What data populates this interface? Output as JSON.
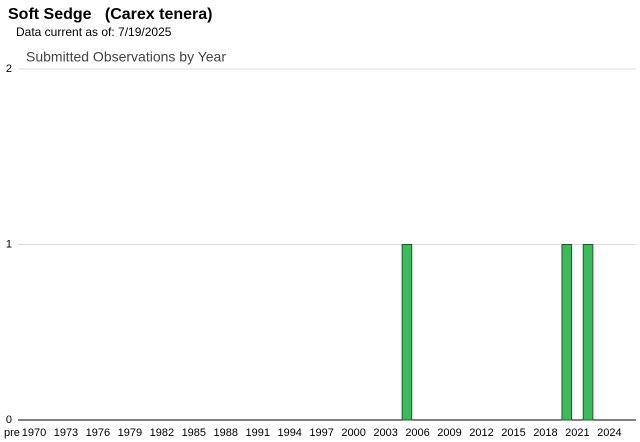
{
  "header": {
    "title": "Soft Sedge   (Carex tenera)",
    "subtitle": "Data current as of: 7/19/2025"
  },
  "chart_data": {
    "type": "bar",
    "title": "Submitted Observations by Year",
    "categories": [
      "pre",
      "1970",
      null,
      null,
      "1973",
      null,
      null,
      "1976",
      null,
      null,
      "1979",
      null,
      null,
      "1982",
      null,
      null,
      "1985",
      null,
      null,
      "1988",
      null,
      null,
      "1991",
      null,
      null,
      "1994",
      null,
      null,
      "1997",
      null,
      null,
      "2000",
      null,
      null,
      "2003",
      null,
      null,
      "2006",
      null,
      null,
      "2009",
      null,
      null,
      "2012",
      null,
      null,
      "2015",
      null,
      null,
      "2018",
      null,
      null,
      "2021",
      null,
      null,
      "2024",
      null,
      null
    ],
    "values": [
      0,
      0,
      0,
      0,
      0,
      0,
      0,
      0,
      0,
      0,
      0,
      0,
      0,
      0,
      0,
      0,
      0,
      0,
      0,
      0,
      0,
      0,
      0,
      0,
      0,
      0,
      0,
      0,
      0,
      0,
      0,
      0,
      0,
      0,
      0,
      0,
      1,
      0,
      0,
      0,
      0,
      0,
      0,
      0,
      0,
      0,
      0,
      0,
      0,
      0,
      0,
      1,
      0,
      1,
      0,
      0,
      0,
      0
    ],
    "color": "#3dbb5c",
    "ylim": [
      0,
      2
    ],
    "yticks": [
      0,
      1,
      2
    ],
    "grid": true
  }
}
